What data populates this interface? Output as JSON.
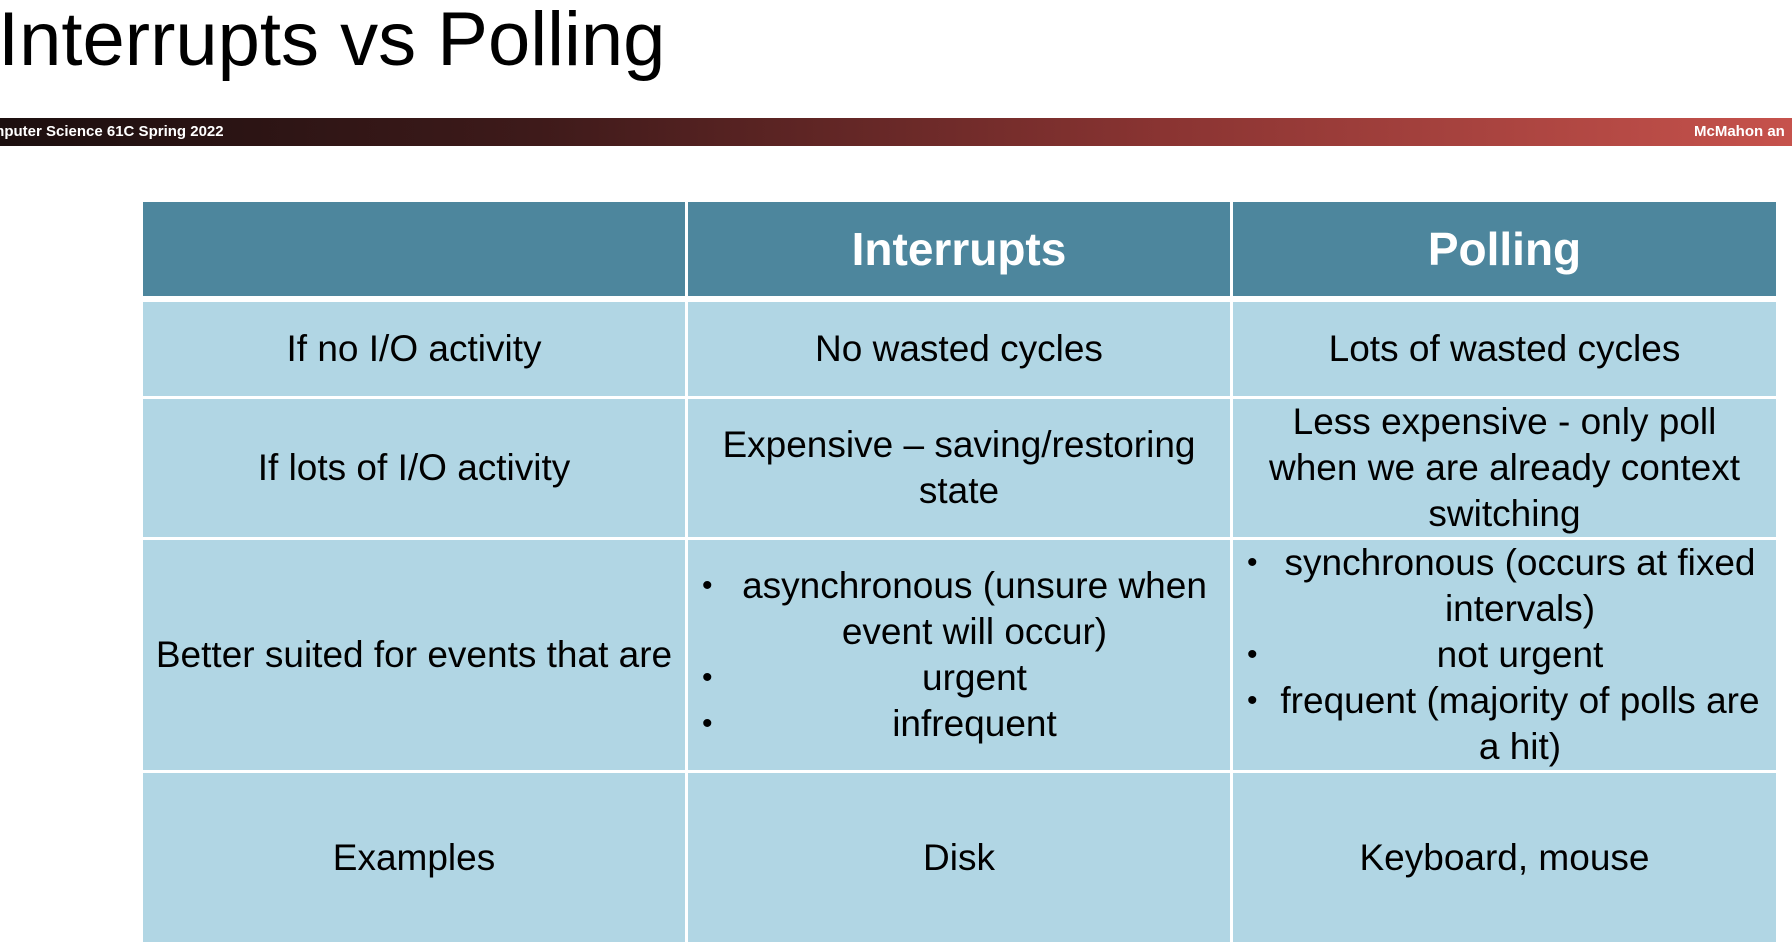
{
  "slide": {
    "title": "Interrupts vs Polling",
    "banner_left": "mputer Science 61C Spring 2022",
    "banner_right": "McMahon an"
  },
  "table": {
    "headers": [
      "",
      "Interrupts",
      "Polling"
    ],
    "rows": [
      {
        "label": "If no I/O activity",
        "interrupts": "No wasted cycles",
        "polling": "Lots of wasted cycles"
      },
      {
        "label": "If lots of I/O activity",
        "interrupts": "Expensive – saving/restoring state",
        "polling": "Less expensive - only poll when we are already context switching"
      },
      {
        "label": "Better suited for events that are",
        "interrupts_items": [
          "asynchronous (unsure when event will occur)",
          "urgent",
          "infrequent"
        ],
        "polling_items": [
          "synchronous (occurs at fixed intervals)",
          "not urgent",
          "frequent (majority of polls are a hit)"
        ]
      },
      {
        "label": "Examples",
        "interrupts": "Disk",
        "polling": "Keyboard, mouse"
      }
    ]
  }
}
